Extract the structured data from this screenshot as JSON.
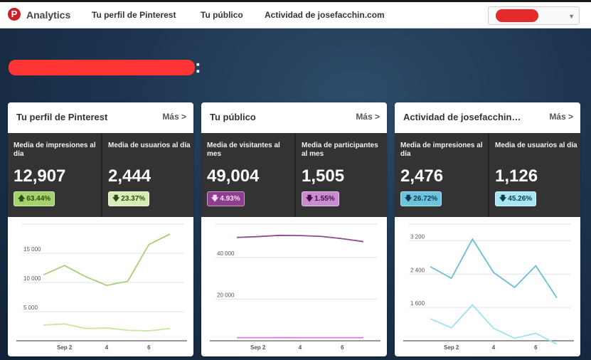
{
  "topbar": {
    "logo_glyph": "P",
    "brand": "Analytics",
    "nav": [
      {
        "label": "Tu perfil de Pinterest"
      },
      {
        "label": "Tu público"
      },
      {
        "label": "Actividad de josefacchin.com"
      }
    ]
  },
  "hero": {
    "title_suffix": ":"
  },
  "cards": [
    {
      "title": "Tu perfil de Pinterest",
      "more": "Más >",
      "stats": [
        {
          "label": "Media de impresiones al día",
          "value": "12,907",
          "change": "63.44%",
          "direction": "up"
        },
        {
          "label": "Media de usuarios al día",
          "value": "2,444",
          "change": "23.37%",
          "direction": "down"
        }
      ],
      "badge_color": "#c4e39a",
      "chart_data": {
        "type": "line",
        "x": [
          "Sep 1",
          "Sep 2",
          "Sep 3",
          "Sep 4",
          "Sep 5",
          "Sep 6",
          "Sep 7"
        ],
        "xticks": [
          "Sep 2",
          "4",
          "6"
        ],
        "ylim": [
          0,
          20000
        ],
        "yticks": [
          "5 000",
          "10 000",
          "15 000"
        ],
        "series": [
          {
            "values": [
              11300,
              12900,
              11000,
              9500,
              10200,
              16500,
              18300
            ],
            "color": "#a9cf73"
          },
          {
            "values": [
              2700,
              2900,
              2100,
              2200,
              1800,
              1700,
              2100
            ],
            "color": "#c8e6a0"
          }
        ]
      }
    },
    {
      "title": "Tu público",
      "more": "Más >",
      "stats": [
        {
          "label": "Media de visitantes al mes",
          "value": "49,004",
          "change": "4.93%",
          "direction": "down"
        },
        {
          "label": "Media de participantes al mes",
          "value": "1,505",
          "change": "1.55%",
          "direction": "down"
        }
      ],
      "badge_color": "#9b4f9b",
      "badge_color_2": "#cf8fcf",
      "chart_data": {
        "type": "line",
        "x": [
          "Sep 1",
          "Sep 2",
          "Sep 3",
          "Sep 4",
          "Sep 5",
          "Sep 6",
          "Sep 7"
        ],
        "xticks": [
          "Sep 2",
          "4",
          "6"
        ],
        "ylim": [
          0,
          56000
        ],
        "yticks": [
          "20 000",
          "40 000"
        ],
        "series": [
          {
            "values": [
              49600,
              50000,
              50600,
              50500,
              50100,
              49000,
              47600
            ],
            "color": "#8e4a8e"
          },
          {
            "values": [
              1500,
              1500,
              1510,
              1505,
              1500,
              1500,
              1500
            ],
            "color": "#cf7fd4"
          }
        ]
      }
    },
    {
      "title": "Actividad de josefacchin…",
      "more": "Más >",
      "stats": [
        {
          "label": "Media de impresiones al día",
          "value": "2,476",
          "change": "26.72%",
          "direction": "down"
        },
        {
          "label": "Media de usuarios al día",
          "value": "1,126",
          "change": "45.26%",
          "direction": "down"
        }
      ],
      "badge_color": "#6fc3dc",
      "badge_color_2": "#a5e3f2",
      "chart_data": {
        "type": "line",
        "x": [
          "Sep 1",
          "Sep 2",
          "Sep 3",
          "Sep 4",
          "Sep 5",
          "Sep 6",
          "Sep 7"
        ],
        "xticks": [
          "Sep 2",
          "4",
          "6"
        ],
        "ylim": [
          800,
          3600
        ],
        "yticks": [
          "1 600",
          "2 400",
          "3 200"
        ],
        "series": [
          {
            "values": [
              2580,
              2300,
              3240,
              2440,
              2080,
              2600,
              1830
            ],
            "color": "#6abed8"
          },
          {
            "values": [
              1330,
              1110,
              1660,
              1100,
              860,
              980,
              720
            ],
            "color": "#9fe0f0"
          }
        ]
      }
    }
  ]
}
